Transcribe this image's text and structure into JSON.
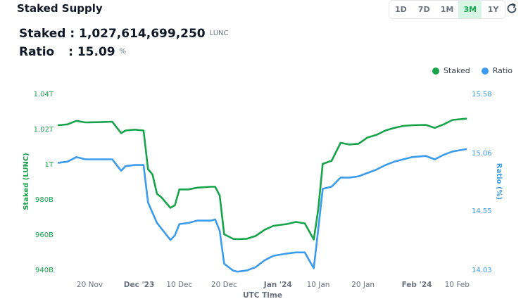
{
  "header": {
    "title": "Staked Supply",
    "ranges": [
      "1D",
      "7D",
      "1M",
      "3M",
      "1Y"
    ],
    "active_range": "3M",
    "refresh_icon": "refresh-icon"
  },
  "stats": {
    "staked_label": "Staked",
    "staked_value": ": 1,027,614,699,250",
    "staked_unit": "LUNC",
    "ratio_label": "Ratio",
    "ratio_value": ": 15.09",
    "ratio_unit": "%"
  },
  "colors": {
    "staked": "#16a34a",
    "ratio": "#3b9bec",
    "active_bg": "#d9f5e6"
  },
  "chart_data": {
    "type": "line",
    "xlabel": "UTC Time",
    "ylabel_left": "Staked (LUNC)",
    "ylabel_right": "Ratio (%)",
    "legend": [
      "Staked",
      "Ratio"
    ],
    "legend_position": "top-right",
    "grid": false,
    "x_ticks": [
      {
        "label": "20 Nov",
        "bold": false
      },
      {
        "label": "Dec '23",
        "bold": true
      },
      {
        "label": "10 Dec",
        "bold": false
      },
      {
        "label": "20 Dec",
        "bold": false
      },
      {
        "label": "Jan '24",
        "bold": true
      },
      {
        "label": "10 Jan",
        "bold": false
      },
      {
        "label": "20 Jan",
        "bold": false
      },
      {
        "label": "Feb '24",
        "bold": true
      },
      {
        "label": "10 Feb",
        "bold": false
      }
    ],
    "x_tick_dates": [
      "2023-11-20",
      "2023-12-01",
      "2023-12-10",
      "2023-12-20",
      "2024-01-01",
      "2024-01-10",
      "2024-01-20",
      "2024-02-01",
      "2024-02-10"
    ],
    "left_axis": {
      "ticks": [
        "1.04T",
        "1.02T",
        "1T",
        "980B",
        "960B",
        "940B"
      ],
      "tick_values": [
        1040,
        1020,
        1000,
        980,
        960,
        940
      ],
      "range": [
        940,
        1040
      ],
      "unit": "billion LUNC"
    },
    "right_axis": {
      "ticks": [
        "15.58",
        "15.06",
        "14.55",
        "14.03"
      ],
      "tick_values": [
        15.58,
        15.06,
        14.55,
        14.03
      ],
      "range": [
        14.03,
        15.58
      ]
    },
    "x_range": [
      "2023-11-13",
      "2024-02-12"
    ],
    "series": [
      {
        "name": "Staked",
        "axis": "left",
        "x": [
          "2023-11-13",
          "2023-11-15",
          "2023-11-17",
          "2023-11-19",
          "2023-11-22",
          "2023-11-25",
          "2023-11-27",
          "2023-11-28",
          "2023-11-30",
          "2023-12-02",
          "2023-12-03",
          "2023-12-04",
          "2023-12-05",
          "2023-12-06",
          "2023-12-08",
          "2023-12-09",
          "2023-12-10",
          "2023-12-12",
          "2023-12-14",
          "2023-12-17",
          "2023-12-18",
          "2023-12-19",
          "2023-12-20",
          "2023-12-22",
          "2023-12-23",
          "2023-12-25",
          "2023-12-27",
          "2023-12-29",
          "2023-12-31",
          "2024-01-03",
          "2024-01-05",
          "2024-01-07",
          "2024-01-09",
          "2024-01-10",
          "2024-01-11",
          "2024-01-13",
          "2024-01-15",
          "2024-01-17",
          "2024-01-19",
          "2024-01-21",
          "2024-01-23",
          "2024-01-25",
          "2024-01-27",
          "2024-01-29",
          "2024-01-31",
          "2024-02-03",
          "2024-02-05",
          "2024-02-07",
          "2024-02-09",
          "2024-02-12"
        ],
        "values": [
          1022.0,
          1022.5,
          1024.5,
          1023.6,
          1023.7,
          1024.0,
          1017.5,
          1019.0,
          1019.5,
          1019.0,
          997.0,
          994.0,
          983.0,
          981.0,
          975.0,
          976.5,
          985.5,
          985.5,
          986.5,
          987.0,
          987.0,
          982.0,
          960.0,
          957.4,
          957.2,
          957.4,
          959.0,
          962.5,
          964.8,
          965.8,
          967.0,
          966.2,
          957.0,
          974.0,
          1000.0,
          1001.8,
          1012.0,
          1011.0,
          1011.5,
          1015.0,
          1016.5,
          1019.0,
          1020.5,
          1021.6,
          1022.0,
          1022.2,
          1020.5,
          1022.5,
          1025.0,
          1025.7
        ]
      },
      {
        "name": "Ratio",
        "axis": "right",
        "x": [
          "2023-11-13",
          "2023-11-15",
          "2023-11-17",
          "2023-11-19",
          "2023-11-22",
          "2023-11-25",
          "2023-11-27",
          "2023-11-28",
          "2023-11-30",
          "2023-12-02",
          "2023-12-03",
          "2023-12-04",
          "2023-12-05",
          "2023-12-06",
          "2023-12-08",
          "2023-12-09",
          "2023-12-10",
          "2023-12-12",
          "2023-12-14",
          "2023-12-17",
          "2023-12-18",
          "2023-12-19",
          "2023-12-20",
          "2023-12-22",
          "2023-12-23",
          "2023-12-25",
          "2023-12-27",
          "2023-12-29",
          "2023-12-31",
          "2024-01-03",
          "2024-01-05",
          "2024-01-07",
          "2024-01-09",
          "2024-01-10",
          "2024-01-11",
          "2024-01-13",
          "2024-01-15",
          "2024-01-17",
          "2024-01-19",
          "2024-01-21",
          "2024-01-23",
          "2024-01-25",
          "2024-01-27",
          "2024-01-29",
          "2024-01-31",
          "2024-02-03",
          "2024-02-05",
          "2024-02-07",
          "2024-02-09",
          "2024-02-12"
        ],
        "values": [
          14.97,
          14.98,
          15.02,
          15.0,
          15.0,
          15.0,
          14.9,
          14.94,
          14.95,
          14.95,
          14.62,
          14.53,
          14.44,
          14.39,
          14.29,
          14.33,
          14.43,
          14.44,
          14.46,
          14.46,
          14.47,
          14.37,
          14.08,
          14.02,
          14.01,
          14.02,
          14.05,
          14.11,
          14.15,
          14.17,
          14.18,
          14.18,
          14.04,
          14.38,
          14.74,
          14.76,
          14.84,
          14.84,
          14.85,
          14.88,
          14.91,
          14.95,
          14.98,
          15.0,
          15.02,
          15.03,
          15.0,
          15.04,
          15.07,
          15.09
        ]
      }
    ]
  }
}
